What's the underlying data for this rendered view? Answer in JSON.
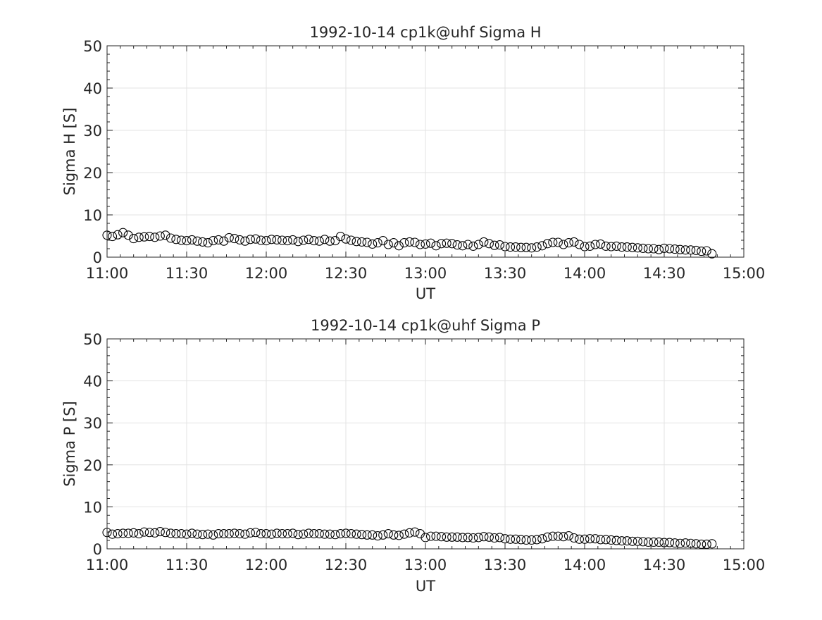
{
  "chart_data": [
    {
      "type": "scatter",
      "title": "1992-10-14  cp1k@uhf Sigma H",
      "xlabel": "UT",
      "ylabel": "Sigma H [S]",
      "xlim": [
        "11:00",
        "15:00"
      ],
      "ylim": [
        0,
        50
      ],
      "xticks": [
        "11:00",
        "11:30",
        "12:00",
        "12:30",
        "13:00",
        "13:30",
        "14:00",
        "14:30",
        "15:00"
      ],
      "yticks": [
        "0",
        "10",
        "20",
        "30",
        "40",
        "50"
      ],
      "grid": true,
      "marker": "open-circle",
      "color": "#000000",
      "series": [
        {
          "x_start": "11:00",
          "x_step_minutes": 2,
          "values": [
            5.2,
            4.9,
            5.3,
            5.8,
            5.2,
            4.4,
            4.7,
            4.8,
            4.9,
            4.7,
            5.0,
            5.2,
            4.5,
            4.2,
            4.0,
            3.9,
            4.1,
            3.8,
            3.6,
            3.4,
            3.9,
            4.1,
            3.8,
            4.6,
            4.4,
            4.1,
            3.8,
            4.2,
            4.3,
            4.0,
            3.9,
            4.2,
            4.1,
            4.0,
            3.9,
            4.1,
            3.7,
            4.0,
            4.2,
            3.9,
            3.8,
            4.2,
            3.8,
            3.9,
            4.9,
            4.3,
            4.0,
            3.7,
            3.6,
            3.5,
            3.1,
            3.4,
            3.9,
            3.0,
            3.4,
            2.7,
            3.4,
            3.6,
            3.5,
            3.0,
            3.1,
            3.3,
            2.7,
            3.2,
            3.3,
            3.2,
            2.9,
            2.7,
            3.0,
            2.6,
            3.0,
            3.6,
            3.2,
            2.8,
            2.9,
            2.5,
            2.4,
            2.4,
            2.3,
            2.3,
            2.2,
            2.4,
            2.7,
            3.2,
            3.5,
            3.5,
            3.0,
            3.4,
            3.6,
            3.0,
            2.5,
            2.6,
            3.0,
            3.1,
            2.6,
            2.5,
            2.6,
            2.4,
            2.4,
            2.3,
            2.2,
            2.1,
            2.0,
            2.0,
            1.8,
            2.1,
            2.0,
            1.9,
            1.8,
            1.7,
            1.7,
            1.6,
            1.4,
            1.5,
            0.8
          ]
        }
      ]
    },
    {
      "type": "scatter",
      "title": "1992-10-14  cp1k@uhf Sigma P",
      "xlabel": "UT",
      "ylabel": "Sigma P [S]",
      "xlim": [
        "11:00",
        "15:00"
      ],
      "ylim": [
        0,
        50
      ],
      "xticks": [
        "11:00",
        "11:30",
        "12:00",
        "12:30",
        "13:00",
        "13:30",
        "14:00",
        "14:30",
        "15:00"
      ],
      "yticks": [
        "0",
        "10",
        "20",
        "30",
        "40",
        "50"
      ],
      "grid": true,
      "marker": "open-circle",
      "color": "#000000",
      "series": [
        {
          "x_start": "11:00",
          "x_step_minutes": 2,
          "values": [
            3.9,
            3.5,
            3.6,
            3.7,
            3.7,
            3.8,
            3.6,
            4.0,
            3.9,
            3.8,
            4.1,
            3.9,
            3.7,
            3.6,
            3.6,
            3.5,
            3.7,
            3.5,
            3.4,
            3.5,
            3.3,
            3.6,
            3.6,
            3.6,
            3.7,
            3.6,
            3.5,
            3.8,
            3.9,
            3.6,
            3.6,
            3.5,
            3.7,
            3.6,
            3.6,
            3.7,
            3.4,
            3.5,
            3.7,
            3.6,
            3.6,
            3.5,
            3.5,
            3.4,
            3.6,
            3.7,
            3.6,
            3.5,
            3.4,
            3.3,
            3.3,
            3.1,
            3.3,
            3.6,
            3.3,
            3.2,
            3.5,
            3.8,
            4.0,
            3.6,
            2.7,
            3.0,
            3.0,
            2.9,
            2.8,
            2.8,
            2.8,
            2.7,
            2.7,
            2.6,
            2.7,
            2.9,
            2.8,
            2.6,
            2.7,
            2.4,
            2.3,
            2.3,
            2.2,
            2.1,
            2.1,
            2.2,
            2.4,
            2.8,
            3.0,
            3.0,
            2.9,
            3.1,
            2.6,
            2.3,
            2.3,
            2.4,
            2.4,
            2.2,
            2.2,
            2.1,
            2.0,
            1.9,
            1.9,
            1.8,
            1.8,
            1.7,
            1.6,
            1.6,
            1.6,
            1.5,
            1.5,
            1.4,
            1.3,
            1.4,
            1.3,
            1.2,
            1.1,
            1.1,
            1.2
          ]
        }
      ]
    }
  ]
}
